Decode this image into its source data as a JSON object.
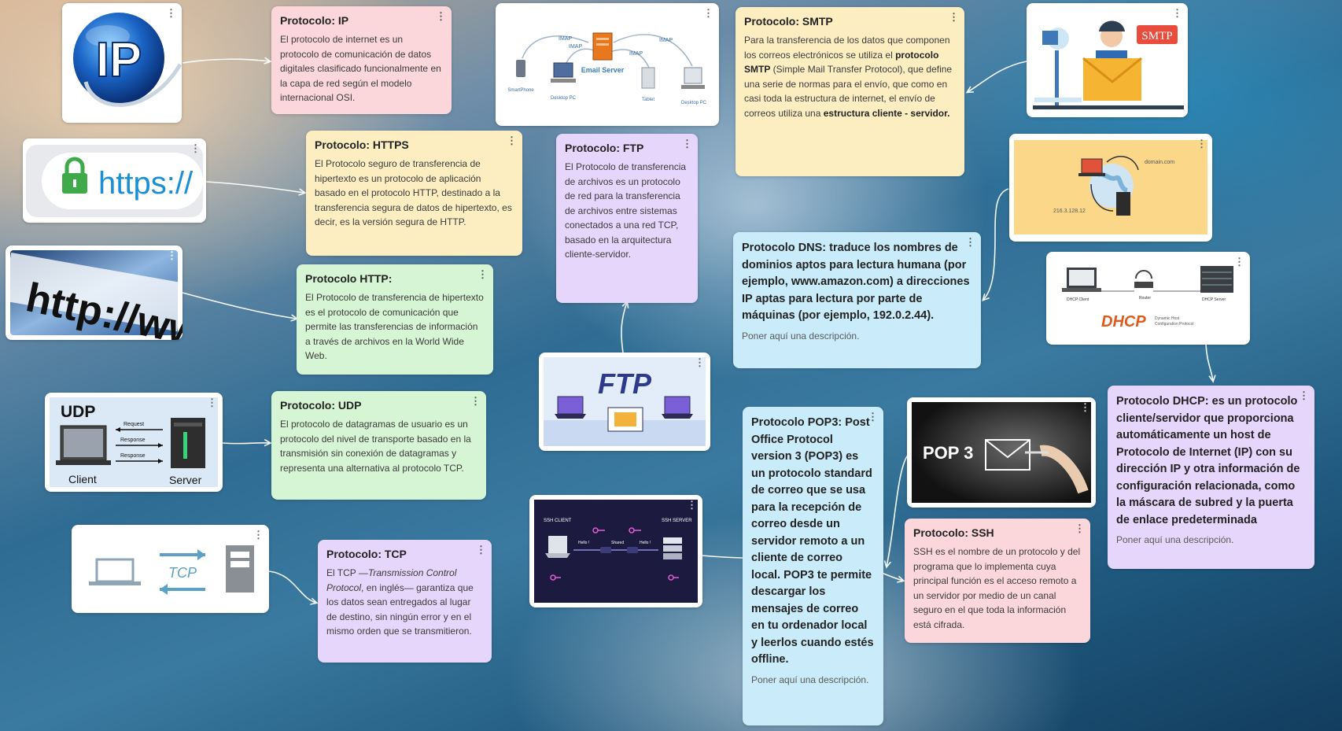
{
  "cards": {
    "ip": {
      "title": "Protocolo: IP",
      "body": "El protocolo de internet es un protocolo de comunicación de datos digitales clasificado funcionalmente en la capa de red según el modelo internacional OSI."
    },
    "https": {
      "title": "Protocolo: HTTPS",
      "body": "El Protocolo seguro de transferencia de hipertexto es un protocolo de aplicación basado en el protocolo HTTP, destinado a la transferencia segura de datos de hipertexto, es decir, es la versión segura de HTTP."
    },
    "http": {
      "title": "Protocolo HTTP:",
      "body": "El Protocolo de transferencia de hipertexto es el protocolo de comunicación que permite las transferencias de información a través de archivos en la World Wide Web."
    },
    "udp": {
      "title": "Protocolo: UDP",
      "body": "El protocolo de datagramas de usuario es un protocolo del nivel de transporte basado en la transmisión sin conexión de datagramas y representa una alternativa al protocolo TCP."
    },
    "tcp": {
      "title": "Protocolo: TCP",
      "body_pre": "El TCP —",
      "body_italic": "Transmission Control Protocol",
      "body_post": ", en inglés— garantiza que los datos sean entregados al lugar de destino, sin ningún error y en el mismo orden que se transmitieron."
    },
    "ftp": {
      "title": "Protocolo: FTP",
      "body": "El Protocolo de transferencia de archivos es un protocolo de red para la transferencia de archivos entre sistemas conectados a una red TCP, basado en la arquitectura cliente-servidor."
    },
    "smtp": {
      "title": "Protocolo: SMTP",
      "body_pre": "Para la transferencia de los datos que componen los correos electrónicos se utiliza el ",
      "body_bold1": "protocolo SMTP",
      "body_mid": " (Simple Mail Transfer Protocol), que define una serie de normas para el envío, que como en casi toda la estructura de internet, el envío de correos utiliza una ",
      "body_bold2": "estructura cliente - servidor."
    },
    "dns": {
      "text": "Protocolo DNS: traduce los nombres de dominios aptos para lectura humana (por ejemplo, www.amazon.com) a direcciones IP aptas para lectura por parte de máquinas (por ejemplo, 192.0.2.44).",
      "desc": "Poner aquí una descripción."
    },
    "pop3": {
      "text": "Protocolo POP3: Post Office Protocol version 3 (POP3) es un protocolo standard de correo que se usa para la recepción de correo desde un servidor remoto a un cliente de correo local. POP3 te permite descargar los mensajes de correo en tu ordenador local y leerlos cuando estés offline.",
      "desc": "Poner aquí una descripción."
    },
    "ssh": {
      "title": "Protocolo: SSH",
      "body": "SSH es el nombre de un protocolo y del programa que lo implementa cuya principal función es el acceso remoto a un servidor por medio de un canal seguro en el que toda la información está cifrada."
    },
    "dhcp": {
      "text": "Protocolo DHCP: es un protocolo cliente/servidor que proporciona automáticamente un host de Protocolo de Internet (IP) con su dirección IP y otra información de configuración relacionada, como la máscara de subred y la puerta de enlace predeterminada",
      "desc": "Poner aquí una descripción."
    }
  },
  "images": {
    "ip": {
      "label": "IP"
    },
    "https": {
      "label": "https://"
    },
    "http": {
      "label": "http://ww"
    },
    "udp": {
      "title": "UDP",
      "request": "Request",
      "response1": "Response",
      "response2": "Response",
      "client": "Client",
      "server": "Server"
    },
    "tcp": {
      "label": "TCP"
    },
    "email": {
      "imap1": "IMAP",
      "imap2": "IMAP",
      "imap3": "IMAP",
      "imap4": "IMAP",
      "server": "Email Server",
      "smartphone": "SmartPhone",
      "desktop1": "Desktop PC",
      "tablet": "Tablet",
      "desktop2": "Desktop PC"
    },
    "smtp": {
      "tag": "SMTP"
    },
    "ftp": {
      "label": "FTP"
    },
    "dns": {
      "domain": "domain.com",
      "ip": "216.3.128.12"
    },
    "dhcp": {
      "client": "DHCP Client",
      "router": "Router",
      "server": "DHCP Server",
      "logo": "DHCP",
      "sub1": "Dynamic Host",
      "sub2": "Configuration Protocol"
    },
    "ssh": {
      "client": "SSH CLIENT",
      "server": "SSH SERVER",
      "hello1": "Hello !",
      "hello2": "Hello !",
      "shared": "Shared"
    },
    "pop3": {
      "label": "POP 3"
    }
  },
  "menu_glyph": "⋮",
  "colors": {
    "pink": "#fbd7dc",
    "yellow": "#fdeec2",
    "green": "#d6f5d4",
    "purple": "#e7d6fb",
    "blue": "#c9ebfa",
    "connector": "#ffffff"
  }
}
